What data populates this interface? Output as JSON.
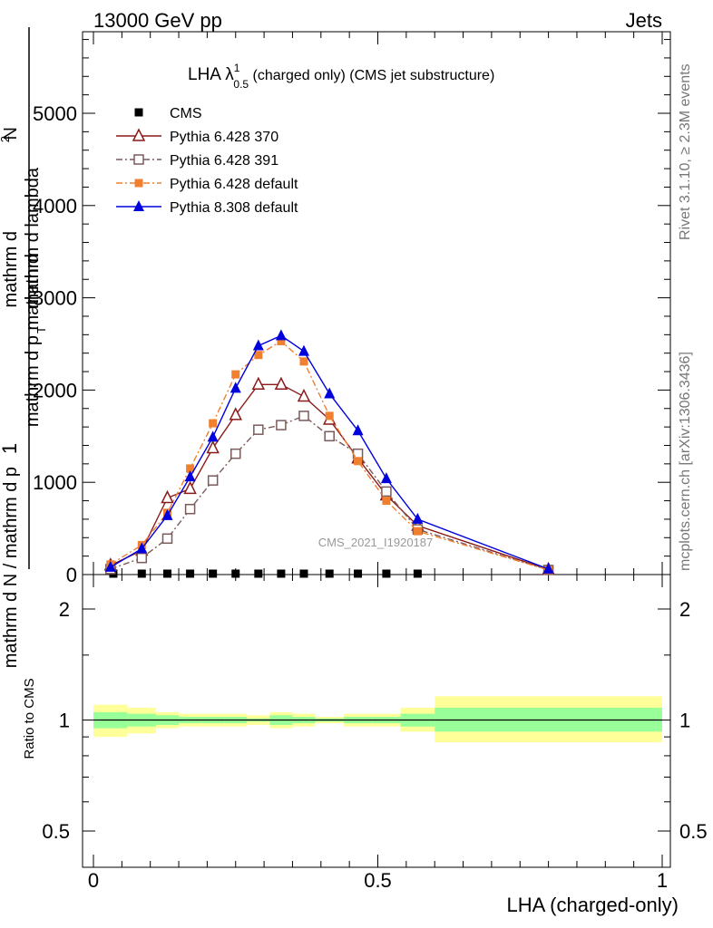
{
  "header": {
    "left": "13000 GeV pp",
    "right": "Jets"
  },
  "side_labels": {
    "rivet": "Rivet 3.1.10, ≥ 2.3M events",
    "mcplots": "mcplots.cern.ch [arXiv:1306.3436]"
  },
  "watermark": "CMS_2021_I1920187",
  "chart_data": [
    {
      "type": "line",
      "title_main": "LHA λ",
      "title_sup": "1",
      "title_sub": "0.5",
      "title_rest": " (charged only) (CMS jet substructure)",
      "ylabel": {
        "lead": "1",
        "numerator": "mathrm d N",
        "denominator_bottom": "mathrm d N / mathrm d p",
        "t_sub": "T",
        "denominator_mid": "mathrm d p",
        "top_numerator": "mathrm d",
        "top_sup": "2",
        "top_denominator": "mathrm d lambda",
        "top_head": "mathrm d",
        "top_N": "N"
      },
      "xlim": [
        -0.02,
        1.02
      ],
      "ylim": [
        0,
        5900
      ],
      "yticks": [
        0,
        1000,
        2000,
        3000,
        4000,
        5000
      ],
      "ytick_labels": [
        "0",
        "1000",
        "2000",
        "3000",
        "4000",
        "5000"
      ],
      "cms_x": [
        0.035,
        0.085,
        0.13,
        0.17,
        0.21,
        0.25,
        0.29,
        0.33,
        0.37,
        0.415,
        0.465,
        0.515,
        0.57
      ],
      "series": [
        {
          "name": "CMS",
          "color": "#000000",
          "marker": "square-filled",
          "dash": "none",
          "x": [
            0.035,
            0.085,
            0.13,
            0.17,
            0.21,
            0.25,
            0.29,
            0.33,
            0.37,
            0.415,
            0.465,
            0.515,
            0.57
          ],
          "y": [
            0,
            0,
            0,
            0,
            0,
            0,
            0,
            0,
            0,
            0,
            0,
            0,
            0
          ]
        },
        {
          "name": "Pythia 6.428 370",
          "color": "#8b1a1a",
          "marker": "triangle-open",
          "dash": "none",
          "x": [
            0.03,
            0.085,
            0.13,
            0.17,
            0.21,
            0.25,
            0.29,
            0.33,
            0.37,
            0.415,
            0.465,
            0.515,
            0.57,
            0.8
          ],
          "y": [
            100,
            260,
            830,
            930,
            1370,
            1730,
            2060,
            2060,
            1930,
            1680,
            1260,
            860,
            530,
            55
          ]
        },
        {
          "name": "Pythia 6.428 391",
          "color": "#7b5a5a",
          "marker": "square-open",
          "dash": "dashdot",
          "x": [
            0.03,
            0.085,
            0.13,
            0.17,
            0.21,
            0.25,
            0.29,
            0.33,
            0.37,
            0.415,
            0.465,
            0.515,
            0.57,
            0.8
          ],
          "y": [
            60,
            180,
            390,
            710,
            1020,
            1310,
            1570,
            1620,
            1720,
            1500,
            1310,
            900,
            490,
            50
          ]
        },
        {
          "name": "Pythia 6.428 default",
          "color": "#f08030",
          "marker": "square-filled",
          "dash": "dashdot",
          "x": [
            0.03,
            0.085,
            0.13,
            0.17,
            0.21,
            0.25,
            0.29,
            0.33,
            0.37,
            0.415,
            0.465,
            0.515,
            0.57,
            0.8
          ],
          "y": [
            110,
            320,
            670,
            1150,
            1640,
            2170,
            2380,
            2530,
            2310,
            1720,
            1230,
            800,
            470,
            50
          ]
        },
        {
          "name": "Pythia 8.308 default",
          "color": "#0000dd",
          "marker": "triangle-filled",
          "dash": "none",
          "x": [
            0.03,
            0.085,
            0.13,
            0.17,
            0.21,
            0.25,
            0.29,
            0.33,
            0.37,
            0.415,
            0.465,
            0.515,
            0.57,
            0.8
          ],
          "y": [
            80,
            280,
            640,
            1060,
            1490,
            2020,
            2480,
            2590,
            2420,
            1960,
            1560,
            1040,
            600,
            60
          ]
        }
      ]
    },
    {
      "type": "area",
      "ylabel": "Ratio to CMS",
      "xlabel": "LHA (charged-only)",
      "xlim": [
        -0.02,
        1.02
      ],
      "ylim": [
        0.4,
        2.4
      ],
      "log_y": true,
      "yticks": [
        0.5,
        1,
        2
      ],
      "ytick_labels": [
        "0.5",
        "1",
        "2"
      ],
      "xticks": [
        0,
        0.5,
        1
      ],
      "xtick_labels": [
        "0",
        "0.5",
        "1"
      ],
      "reference_line": 1,
      "band_colors": {
        "inner": "#99ff99",
        "outer": "#ffff99"
      },
      "bins": [
        {
          "lo": 0.0,
          "hi": 0.06,
          "inner": [
            0.95,
            1.05
          ],
          "outer": [
            0.9,
            1.1
          ]
        },
        {
          "lo": 0.06,
          "hi": 0.11,
          "inner": [
            0.96,
            1.04
          ],
          "outer": [
            0.92,
            1.08
          ]
        },
        {
          "lo": 0.11,
          "hi": 0.15,
          "inner": [
            0.97,
            1.03
          ],
          "outer": [
            0.95,
            1.05
          ]
        },
        {
          "lo": 0.15,
          "hi": 0.19,
          "inner": [
            0.98,
            1.02
          ],
          "outer": [
            0.96,
            1.04
          ]
        },
        {
          "lo": 0.19,
          "hi": 0.23,
          "inner": [
            0.98,
            1.02
          ],
          "outer": [
            0.96,
            1.04
          ]
        },
        {
          "lo": 0.23,
          "hi": 0.27,
          "inner": [
            0.98,
            1.02
          ],
          "outer": [
            0.96,
            1.04
          ]
        },
        {
          "lo": 0.27,
          "hi": 0.31,
          "inner": [
            0.99,
            1.01
          ],
          "outer": [
            0.97,
            1.03
          ]
        },
        {
          "lo": 0.31,
          "hi": 0.35,
          "inner": [
            0.97,
            1.03
          ],
          "outer": [
            0.95,
            1.05
          ]
        },
        {
          "lo": 0.35,
          "hi": 0.39,
          "inner": [
            0.98,
            1.02
          ],
          "outer": [
            0.96,
            1.04
          ]
        },
        {
          "lo": 0.39,
          "hi": 0.44,
          "inner": [
            0.99,
            1.01
          ],
          "outer": [
            0.98,
            1.02
          ]
        },
        {
          "lo": 0.44,
          "hi": 0.49,
          "inner": [
            0.98,
            1.02
          ],
          "outer": [
            0.96,
            1.04
          ]
        },
        {
          "lo": 0.49,
          "hi": 0.54,
          "inner": [
            0.98,
            1.02
          ],
          "outer": [
            0.96,
            1.04
          ]
        },
        {
          "lo": 0.54,
          "hi": 0.6,
          "inner": [
            0.96,
            1.04
          ],
          "outer": [
            0.93,
            1.08
          ]
        },
        {
          "lo": 0.6,
          "hi": 1.0,
          "inner": [
            0.93,
            1.08
          ],
          "outer": [
            0.87,
            1.16
          ]
        }
      ]
    }
  ]
}
